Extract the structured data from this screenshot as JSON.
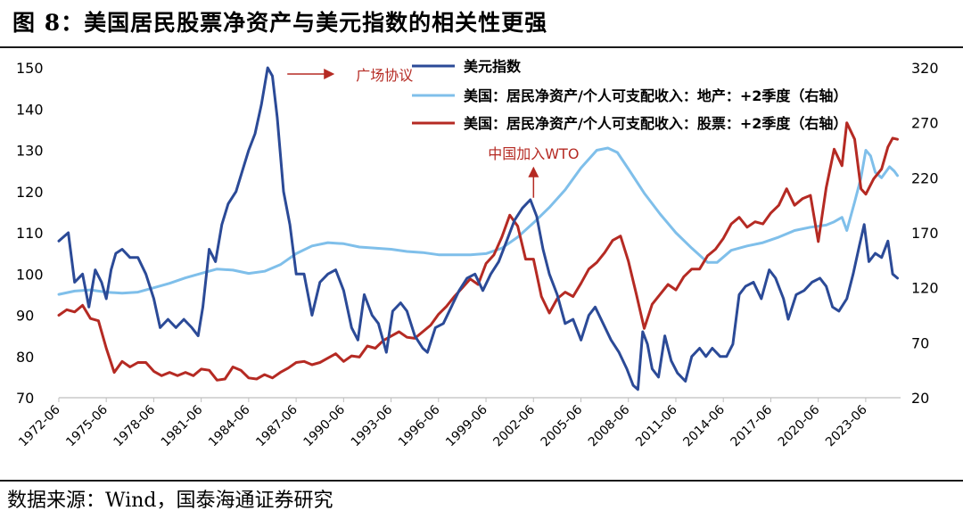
{
  "figure": {
    "title": "图 8：美国居民股票净资产与美元指数的相关性更强",
    "source": "数据来源：Wind，国泰海通证券研究"
  },
  "chart_data": {
    "type": "line",
    "x_ticks": [
      "1972-06",
      "1975-06",
      "1978-06",
      "1981-06",
      "1984-06",
      "1987-06",
      "1990-06",
      "1993-06",
      "1996-06",
      "1999-06",
      "2002-06",
      "2005-06",
      "2008-06",
      "2011-06",
      "2014-06",
      "2017-06",
      "2020-06",
      "2023-06"
    ],
    "x_range": [
      1972.0,
      2025.2
    ],
    "y_left": {
      "ticks": [
        70,
        80,
        90,
        100,
        110,
        120,
        130,
        140,
        150
      ],
      "range": [
        70,
        150
      ]
    },
    "y_right": {
      "ticks": [
        20,
        70,
        120,
        170,
        220,
        270,
        320
      ],
      "range": [
        20,
        320
      ]
    },
    "grid": false,
    "legend_position": "top-center",
    "series": [
      {
        "name": "美元指数",
        "axis": "left",
        "color": "#2b4a97",
        "points": [
          [
            1972.0,
            108
          ],
          [
            1972.6,
            110
          ],
          [
            1973.0,
            98
          ],
          [
            1973.5,
            100
          ],
          [
            1973.9,
            92
          ],
          [
            1974.3,
            101
          ],
          [
            1974.7,
            98
          ],
          [
            1975.0,
            94
          ],
          [
            1975.3,
            101
          ],
          [
            1975.6,
            105
          ],
          [
            1976.0,
            106
          ],
          [
            1976.5,
            104
          ],
          [
            1977.0,
            104
          ],
          [
            1977.5,
            100
          ],
          [
            1978.0,
            94
          ],
          [
            1978.4,
            87
          ],
          [
            1978.9,
            89
          ],
          [
            1979.4,
            87
          ],
          [
            1979.9,
            89
          ],
          [
            1980.4,
            87
          ],
          [
            1980.8,
            85
          ],
          [
            1981.1,
            92
          ],
          [
            1981.5,
            106
          ],
          [
            1981.9,
            103
          ],
          [
            1982.3,
            112
          ],
          [
            1982.7,
            117
          ],
          [
            1983.2,
            120
          ],
          [
            1983.6,
            125
          ],
          [
            1984.0,
            130
          ],
          [
            1984.4,
            134
          ],
          [
            1984.8,
            141
          ],
          [
            1985.2,
            150
          ],
          [
            1985.5,
            148
          ],
          [
            1985.8,
            138
          ],
          [
            1986.2,
            120
          ],
          [
            1986.6,
            112
          ],
          [
            1987.0,
            100
          ],
          [
            1987.5,
            100
          ],
          [
            1988.0,
            90
          ],
          [
            1988.5,
            98
          ],
          [
            1989.0,
            100
          ],
          [
            1989.5,
            101
          ],
          [
            1990.0,
            96
          ],
          [
            1990.5,
            87
          ],
          [
            1990.9,
            84
          ],
          [
            1991.3,
            95
          ],
          [
            1991.8,
            90
          ],
          [
            1992.2,
            88
          ],
          [
            1992.7,
            81
          ],
          [
            1993.1,
            91
          ],
          [
            1993.6,
            93
          ],
          [
            1994.0,
            91
          ],
          [
            1994.5,
            85
          ],
          [
            1995.0,
            82
          ],
          [
            1995.3,
            81
          ],
          [
            1995.8,
            87
          ],
          [
            1996.3,
            88
          ],
          [
            1996.8,
            92
          ],
          [
            1997.3,
            96
          ],
          [
            1997.8,
            99
          ],
          [
            1998.3,
            100
          ],
          [
            1998.8,
            96
          ],
          [
            1999.3,
            100
          ],
          [
            1999.8,
            103
          ],
          [
            2000.3,
            108
          ],
          [
            2000.8,
            113
          ],
          [
            2001.3,
            116
          ],
          [
            2001.8,
            118
          ],
          [
            2002.2,
            114
          ],
          [
            2002.6,
            106
          ],
          [
            2003.0,
            100
          ],
          [
            2003.5,
            95
          ],
          [
            2004.0,
            88
          ],
          [
            2004.5,
            89
          ],
          [
            2005.0,
            84
          ],
          [
            2005.5,
            90
          ],
          [
            2005.9,
            92
          ],
          [
            2006.4,
            88
          ],
          [
            2006.9,
            84
          ],
          [
            2007.4,
            81
          ],
          [
            2007.9,
            77
          ],
          [
            2008.3,
            73
          ],
          [
            2008.6,
            72
          ],
          [
            2008.9,
            86
          ],
          [
            2009.2,
            83
          ],
          [
            2009.5,
            77
          ],
          [
            2009.9,
            75
          ],
          [
            2010.3,
            85
          ],
          [
            2010.7,
            79
          ],
          [
            2011.1,
            76
          ],
          [
            2011.6,
            74
          ],
          [
            2012.0,
            80
          ],
          [
            2012.5,
            82
          ],
          [
            2012.9,
            80
          ],
          [
            2013.3,
            82
          ],
          [
            2013.8,
            80
          ],
          [
            2014.2,
            80
          ],
          [
            2014.6,
            83
          ],
          [
            2015.0,
            95
          ],
          [
            2015.4,
            97
          ],
          [
            2015.9,
            98
          ],
          [
            2016.4,
            94
          ],
          [
            2016.9,
            101
          ],
          [
            2017.3,
            99
          ],
          [
            2017.8,
            94
          ],
          [
            2018.1,
            89
          ],
          [
            2018.6,
            95
          ],
          [
            2019.1,
            96
          ],
          [
            2019.6,
            98
          ],
          [
            2020.1,
            99
          ],
          [
            2020.5,
            97
          ],
          [
            2020.9,
            92
          ],
          [
            2021.3,
            91
          ],
          [
            2021.8,
            94
          ],
          [
            2022.2,
            100
          ],
          [
            2022.6,
            107
          ],
          [
            2022.9,
            112
          ],
          [
            2023.2,
            103
          ],
          [
            2023.6,
            105
          ],
          [
            2024.0,
            104
          ],
          [
            2024.4,
            108
          ],
          [
            2024.7,
            100
          ],
          [
            2025.0,
            99
          ]
        ]
      },
      {
        "name": "美国：居民净资产/个人可支配收入：地产：+2季度（右轴）",
        "axis": "right",
        "color": "#7fbfea",
        "points": [
          [
            1972.0,
            114
          ],
          [
            1973.0,
            117
          ],
          [
            1974.0,
            118
          ],
          [
            1975.0,
            116
          ],
          [
            1976.0,
            115
          ],
          [
            1977.0,
            116
          ],
          [
            1978.0,
            120
          ],
          [
            1979.0,
            124
          ],
          [
            1980.0,
            129
          ],
          [
            1981.0,
            133
          ],
          [
            1982.0,
            137
          ],
          [
            1983.0,
            136
          ],
          [
            1984.0,
            133
          ],
          [
            1985.0,
            135
          ],
          [
            1986.0,
            141
          ],
          [
            1987.0,
            151
          ],
          [
            1988.0,
            158
          ],
          [
            1989.0,
            161
          ],
          [
            1990.0,
            160
          ],
          [
            1991.0,
            157
          ],
          [
            1992.0,
            156
          ],
          [
            1993.0,
            155
          ],
          [
            1994.0,
            153
          ],
          [
            1995.0,
            152
          ],
          [
            1996.0,
            150
          ],
          [
            1997.0,
            150
          ],
          [
            1998.0,
            150
          ],
          [
            1999.0,
            151
          ],
          [
            2000.0,
            156
          ],
          [
            2001.0,
            166
          ],
          [
            2002.0,
            179
          ],
          [
            2003.0,
            193
          ],
          [
            2004.0,
            209
          ],
          [
            2005.0,
            229
          ],
          [
            2006.0,
            245
          ],
          [
            2006.7,
            247
          ],
          [
            2007.3,
            243
          ],
          [
            2008.0,
            228
          ],
          [
            2009.0,
            206
          ],
          [
            2010.0,
            187
          ],
          [
            2011.0,
            170
          ],
          [
            2012.0,
            156
          ],
          [
            2013.0,
            143
          ],
          [
            2013.6,
            143
          ],
          [
            2014.5,
            154
          ],
          [
            2015.5,
            158
          ],
          [
            2016.5,
            161
          ],
          [
            2017.5,
            166
          ],
          [
            2018.5,
            172
          ],
          [
            2019.5,
            175
          ],
          [
            2020.5,
            177
          ],
          [
            2021.0,
            180
          ],
          [
            2021.5,
            184
          ],
          [
            2021.8,
            172
          ],
          [
            2022.3,
            198
          ],
          [
            2022.7,
            220
          ],
          [
            2023.0,
            245
          ],
          [
            2023.3,
            240
          ],
          [
            2023.6,
            225
          ],
          [
            2024.0,
            220
          ],
          [
            2024.5,
            230
          ],
          [
            2024.8,
            226
          ],
          [
            2025.0,
            222
          ]
        ]
      },
      {
        "name": "美国：居民净资产/个人可支配收入：股票：+2季度（右轴）",
        "axis": "right",
        "color": "#b52a23",
        "points": [
          [
            1972.0,
            95
          ],
          [
            1972.5,
            100
          ],
          [
            1973.0,
            98
          ],
          [
            1973.5,
            104
          ],
          [
            1974.0,
            92
          ],
          [
            1974.5,
            90
          ],
          [
            1975.0,
            65
          ],
          [
            1975.5,
            43
          ],
          [
            1976.0,
            53
          ],
          [
            1976.5,
            48
          ],
          [
            1977.0,
            52
          ],
          [
            1977.5,
            52
          ],
          [
            1978.0,
            44
          ],
          [
            1978.5,
            40
          ],
          [
            1979.0,
            43
          ],
          [
            1979.5,
            40
          ],
          [
            1980.0,
            43
          ],
          [
            1980.5,
            40
          ],
          [
            1981.0,
            46
          ],
          [
            1981.5,
            45
          ],
          [
            1982.0,
            36
          ],
          [
            1982.5,
            37
          ],
          [
            1983.0,
            48
          ],
          [
            1983.5,
            45
          ],
          [
            1984.0,
            38
          ],
          [
            1984.5,
            37
          ],
          [
            1985.0,
            41
          ],
          [
            1985.5,
            38
          ],
          [
            1986.0,
            43
          ],
          [
            1986.5,
            47
          ],
          [
            1987.0,
            52
          ],
          [
            1987.5,
            53
          ],
          [
            1988.0,
            50
          ],
          [
            1988.5,
            52
          ],
          [
            1989.0,
            56
          ],
          [
            1989.5,
            60
          ],
          [
            1990.0,
            53
          ],
          [
            1990.5,
            58
          ],
          [
            1991.0,
            57
          ],
          [
            1991.5,
            67
          ],
          [
            1992.0,
            65
          ],
          [
            1992.5,
            72
          ],
          [
            1993.0,
            76
          ],
          [
            1993.5,
            80
          ],
          [
            1994.0,
            75
          ],
          [
            1994.5,
            74
          ],
          [
            1995.0,
            80
          ],
          [
            1995.5,
            86
          ],
          [
            1996.0,
            96
          ],
          [
            1996.5,
            103
          ],
          [
            1997.0,
            112
          ],
          [
            1997.5,
            120
          ],
          [
            1998.0,
            128
          ],
          [
            1998.5,
            123
          ],
          [
            1999.0,
            142
          ],
          [
            1999.5,
            150
          ],
          [
            2000.0,
            166
          ],
          [
            2000.5,
            186
          ],
          [
            2001.0,
            176
          ],
          [
            2001.5,
            146
          ],
          [
            2002.0,
            146
          ],
          [
            2002.5,
            112
          ],
          [
            2003.0,
            97
          ],
          [
            2003.5,
            110
          ],
          [
            2004.0,
            116
          ],
          [
            2004.5,
            112
          ],
          [
            2005.0,
            124
          ],
          [
            2005.5,
            137
          ],
          [
            2006.0,
            143
          ],
          [
            2006.5,
            152
          ],
          [
            2007.0,
            163
          ],
          [
            2007.5,
            167
          ],
          [
            2008.0,
            144
          ],
          [
            2008.5,
            114
          ],
          [
            2009.0,
            83
          ],
          [
            2009.5,
            105
          ],
          [
            2010.0,
            114
          ],
          [
            2010.5,
            123
          ],
          [
            2011.0,
            118
          ],
          [
            2011.5,
            130
          ],
          [
            2012.0,
            137
          ],
          [
            2012.5,
            137
          ],
          [
            2013.0,
            149
          ],
          [
            2013.5,
            155
          ],
          [
            2014.0,
            165
          ],
          [
            2014.5,
            178
          ],
          [
            2015.0,
            184
          ],
          [
            2015.5,
            175
          ],
          [
            2016.0,
            180
          ],
          [
            2016.5,
            178
          ],
          [
            2017.0,
            188
          ],
          [
            2017.5,
            195
          ],
          [
            2018.0,
            210
          ],
          [
            2018.5,
            195
          ],
          [
            2019.0,
            201
          ],
          [
            2019.5,
            204
          ],
          [
            2020.0,
            162
          ],
          [
            2020.5,
            211
          ],
          [
            2021.0,
            246
          ],
          [
            2021.5,
            231
          ],
          [
            2021.8,
            270
          ],
          [
            2022.3,
            255
          ],
          [
            2022.7,
            210
          ],
          [
            2023.0,
            205
          ],
          [
            2023.5,
            219
          ],
          [
            2024.0,
            228
          ],
          [
            2024.4,
            248
          ],
          [
            2024.7,
            256
          ],
          [
            2025.0,
            255
          ]
        ]
      }
    ],
    "annotations": [
      {
        "text": "广场协议",
        "x": 1985.2,
        "y": 150
      },
      {
        "text": "中国加入WTO",
        "x": 2002.0,
        "y": 128
      }
    ]
  }
}
